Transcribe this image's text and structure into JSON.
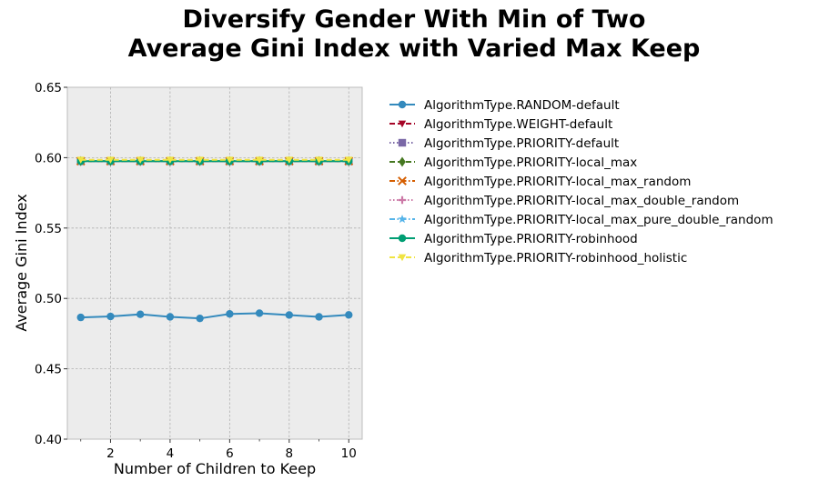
{
  "chart_data": {
    "type": "line",
    "title_lines": [
      "Diversify Gender With Min of Two",
      "Average Gini Index with Varied Max Keep"
    ],
    "xlabel": "Number of Children to Keep",
    "ylabel": "Average Gini Index",
    "xlim": [
      0.55,
      10.45
    ],
    "ylim": [
      0.4,
      0.65
    ],
    "xticks": [
      2,
      4,
      6,
      8,
      10
    ],
    "xticks_minor": [
      1,
      3,
      5,
      7,
      9
    ],
    "yticks": [
      0.4,
      0.45,
      0.5,
      0.55,
      0.6,
      0.65
    ],
    "ytick_labels": [
      "0.40",
      "0.45",
      "0.50",
      "0.55",
      "0.60",
      "0.65"
    ],
    "grid": true,
    "legend_position": "outside-right",
    "background": "#ececec",
    "x": [
      1,
      2,
      3,
      4,
      5,
      6,
      7,
      8,
      9,
      10
    ],
    "series": [
      {
        "name": "AlgorithmType.RANDOM-default",
        "color": "#348abd",
        "linestyle": "solid",
        "marker": "circle",
        "values": [
          0.4865,
          0.4872,
          0.4887,
          0.4869,
          0.4858,
          0.489,
          0.4895,
          0.4882,
          0.4869,
          0.4883
        ]
      },
      {
        "name": "AlgorithmType.WEIGHT-default",
        "color": "#a60628",
        "linestyle": "dashed",
        "marker": "triangle-down",
        "values": [
          0.5975,
          0.5975,
          0.5975,
          0.5975,
          0.5975,
          0.5975,
          0.5975,
          0.5975,
          0.5975,
          0.5975
        ]
      },
      {
        "name": "AlgorithmType.PRIORITY-default",
        "color": "#7a68a6",
        "linestyle": "dotted",
        "marker": "square",
        "values": [
          0.5975,
          0.5975,
          0.5975,
          0.5975,
          0.5975,
          0.5975,
          0.5975,
          0.5975,
          0.5975,
          0.5975
        ]
      },
      {
        "name": "AlgorithmType.PRIORITY-local_max",
        "color": "#467821",
        "linestyle": "dashed",
        "marker": "diamond",
        "values": [
          0.5975,
          0.5975,
          0.5975,
          0.5975,
          0.5975,
          0.5975,
          0.5975,
          0.5975,
          0.5975,
          0.5975
        ]
      },
      {
        "name": "AlgorithmType.PRIORITY-local_max_random",
        "color": "#d55e00",
        "linestyle": "dashdot",
        "marker": "x",
        "values": [
          0.5975,
          0.5975,
          0.5975,
          0.5975,
          0.5975,
          0.5975,
          0.5975,
          0.5975,
          0.5975,
          0.5975
        ]
      },
      {
        "name": "AlgorithmType.PRIORITY-local_max_double_random",
        "color": "#cc79a7",
        "linestyle": "dotted",
        "marker": "plus",
        "values": [
          0.5975,
          0.5975,
          0.5975,
          0.5975,
          0.5975,
          0.5975,
          0.5975,
          0.5975,
          0.5975,
          0.5975
        ]
      },
      {
        "name": "AlgorithmType.PRIORITY-local_max_pure_double_random",
        "color": "#56b4e9",
        "linestyle": "dashdot",
        "marker": "star",
        "values": [
          0.5975,
          0.5975,
          0.5975,
          0.5975,
          0.5975,
          0.5975,
          0.5975,
          0.5975,
          0.5975,
          0.5975
        ]
      },
      {
        "name": "AlgorithmType.PRIORITY-robinhood",
        "color": "#009e73",
        "linestyle": "solid",
        "marker": "circle",
        "values": [
          0.5975,
          0.5975,
          0.5975,
          0.5975,
          0.5975,
          0.5975,
          0.5975,
          0.5975,
          0.5975,
          0.5975
        ]
      },
      {
        "name": "AlgorithmType.PRIORITY-robinhood_holistic",
        "color": "#f0e442",
        "linestyle": "dashed",
        "marker": "triangle-down",
        "values": [
          0.5985,
          0.5985,
          0.5985,
          0.5985,
          0.5985,
          0.5985,
          0.5985,
          0.5985,
          0.5985,
          0.5985
        ]
      }
    ]
  }
}
